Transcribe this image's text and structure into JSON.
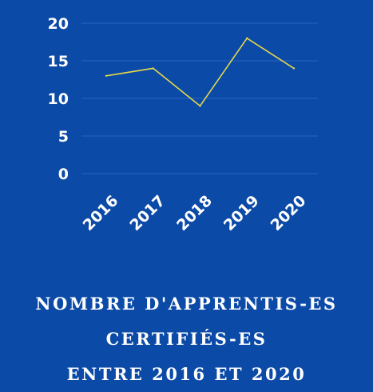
{
  "chart_data": {
    "type": "line",
    "categories": [
      "2016",
      "2017",
      "2018",
      "2019",
      "2020"
    ],
    "values": [
      13,
      14,
      9,
      18,
      14
    ],
    "ylim": [
      0,
      20
    ],
    "yticks": [
      "0",
      "5",
      "10",
      "15",
      "20"
    ],
    "grid": true,
    "title_lines": [
      "NOMBRE D'APPRENTIS-ES",
      "CERTIFIÉS-ES",
      "ENTRE 2016 ET 2020"
    ]
  },
  "colors": {
    "background": "#0b4aa6",
    "line": "#e6d84a",
    "grid": "#2a63c0",
    "text": "#ffffff"
  }
}
